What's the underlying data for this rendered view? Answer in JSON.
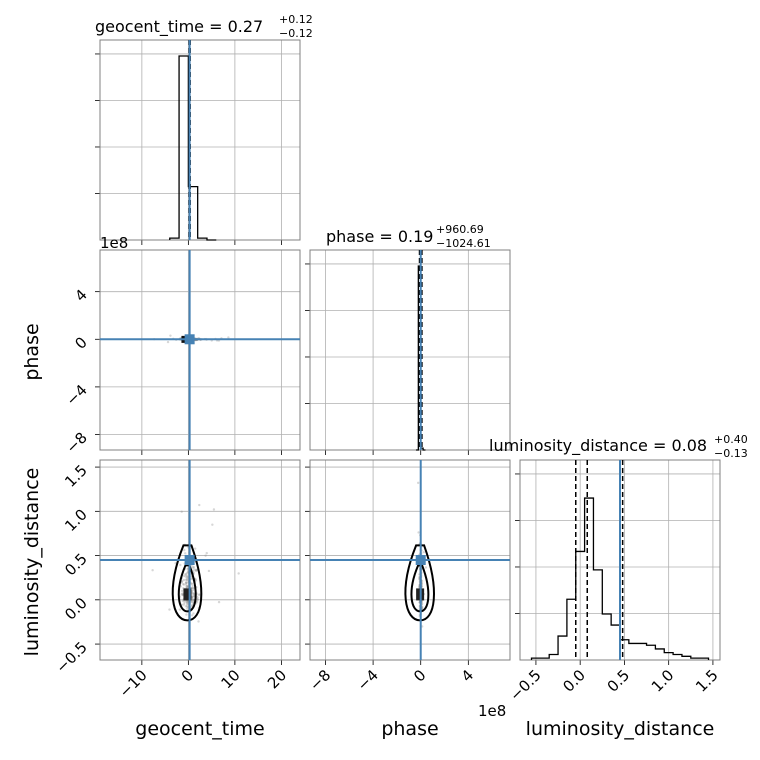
{
  "colors": {
    "truth": "#4682b4",
    "hist": "#000000",
    "grid": "#b0b0b0",
    "frame": "#808080",
    "points": "#8c8c8c"
  },
  "titles": {
    "geocent_time": {
      "main": "geocent_time = 0.27",
      "upper": "+0.12",
      "lower": "−0.12"
    },
    "phase": {
      "main": "phase = 0.19",
      "upper": "+960.69",
      "lower": "−1024.61"
    },
    "luminosity_distance": {
      "main": "luminosity_distance = 0.08",
      "upper": "+0.40",
      "lower": "−0.13"
    }
  },
  "axis_labels": {
    "x1": "geocent_time",
    "x2": "phase",
    "x3": "luminosity_distance",
    "y2": "phase",
    "y3": "luminosity_distance"
  },
  "offset_labels": {
    "phase_y": "1e8",
    "phase_x": "1e8"
  },
  "ticks": {
    "geocent_time": [
      "−10",
      "0",
      "10",
      "20"
    ],
    "phase": [
      "−8",
      "−4",
      "0",
      "4"
    ],
    "luminosity_distance_x": [
      "−0.5",
      "0.0",
      "0.5",
      "1.0",
      "1.5"
    ],
    "luminosity_distance_y": [
      "−0.5",
      "0.0",
      "0.5",
      "1.0",
      "1.5"
    ],
    "phase_y": [
      "−8",
      "−4",
      "0",
      "4"
    ]
  },
  "chart_data": {
    "type": "corner",
    "parameters": [
      "geocent_time",
      "phase",
      "luminosity_distance"
    ],
    "ranges": {
      "geocent_time": [
        -19,
        24
      ],
      "phase": [
        -9.3,
        7.5
      ],
      "luminosity_distance": [
        -0.68,
        1.58
      ]
    },
    "phase_scale": "1e8",
    "truths": {
      "geocent_time": 0.27,
      "phase": 0.0,
      "luminosity_distance": 0.45
    },
    "quantile_lines": {
      "geocent_time": [
        0.15,
        0.27,
        0.39
      ],
      "phase": [
        -0.1,
        0.0,
        0.1
      ],
      "luminosity_distance": [
        -0.05,
        0.08,
        0.48
      ]
    },
    "histograms": {
      "geocent_time": {
        "bin_edges": [
          -4,
          -2,
          0,
          2,
          4,
          6
        ],
        "values": [
          0.01,
          1.0,
          0.29,
          0.01,
          0
        ]
      },
      "phase": {
        "bin_edges": [
          -0.4,
          -0.2,
          0.0,
          0.2,
          0.4
        ],
        "values": [
          0.0,
          1.0,
          0.01,
          0.0
        ]
      },
      "luminosity_distance": {
        "bin_edges": [
          -0.55,
          -0.45,
          -0.35,
          -0.25,
          -0.15,
          -0.05,
          0.05,
          0.15,
          0.25,
          0.35,
          0.45,
          0.55,
          0.65,
          0.75,
          0.85,
          0.95,
          1.05,
          1.15,
          1.25,
          1.35,
          1.45
        ],
        "values": [
          0.01,
          0.01,
          0.03,
          0.13,
          0.33,
          0.59,
          0.88,
          0.49,
          0.25,
          0.19,
          0.11,
          0.09,
          0.09,
          0.08,
          0.06,
          0.04,
          0.03,
          0.02,
          0.01,
          0.01
        ]
      }
    },
    "grid": true
  }
}
